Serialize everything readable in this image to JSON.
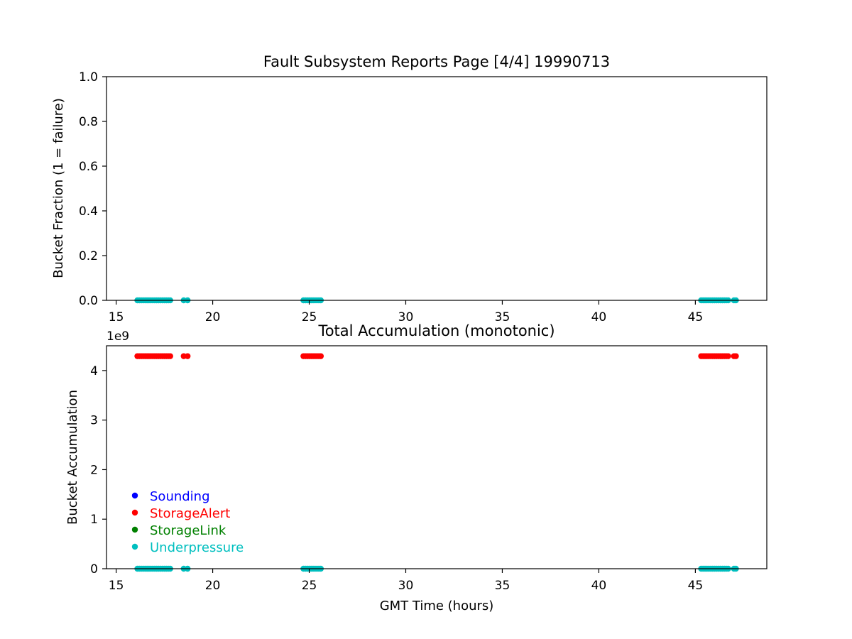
{
  "chart_data": [
    {
      "type": "scatter",
      "title": "Fault Subsystem Reports Page [4/4] 19990713",
      "xlabel": "",
      "ylabel": "Bucket Fraction (1 = failure)",
      "xlim": [
        14.5,
        48.7
      ],
      "ylim": [
        0.0,
        1.0
      ],
      "xticks": [
        "15",
        "20",
        "25",
        "30",
        "35",
        "40",
        "45"
      ],
      "yticks": [
        "0.0",
        "0.2",
        "0.4",
        "0.6",
        "0.8",
        "1.0"
      ],
      "grid": false,
      "series": [
        {
          "name": "Sounding",
          "color": "#0000ff",
          "x": [],
          "y": []
        },
        {
          "name": "StorageAlert",
          "color": "#ff0000",
          "x": [],
          "y": []
        },
        {
          "name": "StorageLink",
          "color": "#008000",
          "x": [],
          "y": []
        },
        {
          "name": "Underpressure",
          "color": "#00bfbf",
          "x": [
            16.1,
            16.2,
            16.3,
            16.4,
            16.5,
            16.6,
            16.7,
            16.8,
            16.9,
            17.0,
            17.1,
            17.2,
            17.3,
            17.4,
            17.5,
            17.6,
            17.7,
            17.8,
            18.5,
            18.7,
            24.7,
            24.8,
            24.9,
            25.0,
            25.1,
            25.2,
            25.3,
            25.4,
            25.5,
            25.6,
            45.3,
            45.4,
            45.5,
            45.6,
            45.7,
            45.8,
            45.9,
            46.0,
            46.1,
            46.2,
            46.3,
            46.4,
            46.5,
            46.6,
            46.7,
            47.0,
            47.1
          ],
          "y": [
            0,
            0,
            0,
            0,
            0,
            0,
            0,
            0,
            0,
            0,
            0,
            0,
            0,
            0,
            0,
            0,
            0,
            0,
            0,
            0,
            0,
            0,
            0,
            0,
            0,
            0,
            0,
            0,
            0,
            0,
            0,
            0,
            0,
            0,
            0,
            0,
            0,
            0,
            0,
            0,
            0,
            0,
            0,
            0,
            0,
            0,
            0
          ]
        }
      ]
    },
    {
      "type": "scatter",
      "title": "Total Accumulation (monotonic)",
      "xlabel": "GMT Time (hours)",
      "ylabel": "Bucket Accumulation",
      "y_offset_label": "1e9",
      "y_scale_factor": 1000000000,
      "xlim": [
        14.5,
        48.7
      ],
      "ylim": [
        0,
        4.5
      ],
      "xticks": [
        "15",
        "20",
        "25",
        "30",
        "35",
        "40",
        "45"
      ],
      "yticks": [
        "0",
        "1",
        "2",
        "3",
        "4"
      ],
      "grid": false,
      "legend_position": "lower-left",
      "series": [
        {
          "name": "Sounding",
          "color": "#0000ff",
          "x": [],
          "y": []
        },
        {
          "name": "StorageAlert",
          "color": "#ff0000",
          "x": [
            16.1,
            16.2,
            16.3,
            16.4,
            16.5,
            16.6,
            16.7,
            16.8,
            16.9,
            17.0,
            17.1,
            17.2,
            17.3,
            17.4,
            17.5,
            17.6,
            17.7,
            17.8,
            18.5,
            18.7,
            24.7,
            24.8,
            24.9,
            25.0,
            25.1,
            25.2,
            25.3,
            25.4,
            25.5,
            25.6,
            45.3,
            45.4,
            45.5,
            45.6,
            45.7,
            45.8,
            45.9,
            46.0,
            46.1,
            46.2,
            46.3,
            46.4,
            46.5,
            46.6,
            46.7,
            47.0,
            47.1
          ],
          "y": [
            4.29,
            4.29,
            4.29,
            4.29,
            4.29,
            4.29,
            4.29,
            4.29,
            4.29,
            4.29,
            4.29,
            4.29,
            4.29,
            4.29,
            4.29,
            4.29,
            4.29,
            4.29,
            4.29,
            4.29,
            4.29,
            4.29,
            4.29,
            4.29,
            4.29,
            4.29,
            4.29,
            4.29,
            4.29,
            4.29,
            4.29,
            4.29,
            4.29,
            4.29,
            4.29,
            4.29,
            4.29,
            4.29,
            4.29,
            4.29,
            4.29,
            4.29,
            4.29,
            4.29,
            4.29,
            4.29,
            4.29
          ]
        },
        {
          "name": "StorageLink",
          "color": "#008000",
          "x": [],
          "y": []
        },
        {
          "name": "Underpressure",
          "color": "#00bfbf",
          "x": [
            16.1,
            16.2,
            16.3,
            16.4,
            16.5,
            16.6,
            16.7,
            16.8,
            16.9,
            17.0,
            17.1,
            17.2,
            17.3,
            17.4,
            17.5,
            17.6,
            17.7,
            17.8,
            18.5,
            18.7,
            24.7,
            24.8,
            24.9,
            25.0,
            25.1,
            25.2,
            25.3,
            25.4,
            25.5,
            25.6,
            45.3,
            45.4,
            45.5,
            45.6,
            45.7,
            45.8,
            45.9,
            46.0,
            46.1,
            46.2,
            46.3,
            46.4,
            46.5,
            46.6,
            46.7,
            47.0,
            47.1
          ],
          "y": [
            0,
            0,
            0,
            0,
            0,
            0,
            0,
            0,
            0,
            0,
            0,
            0,
            0,
            0,
            0,
            0,
            0,
            0,
            0,
            0,
            0,
            0,
            0,
            0,
            0,
            0,
            0,
            0,
            0,
            0,
            0,
            0,
            0,
            0,
            0,
            0,
            0,
            0,
            0,
            0,
            0,
            0,
            0,
            0,
            0,
            0,
            0
          ]
        }
      ]
    }
  ]
}
